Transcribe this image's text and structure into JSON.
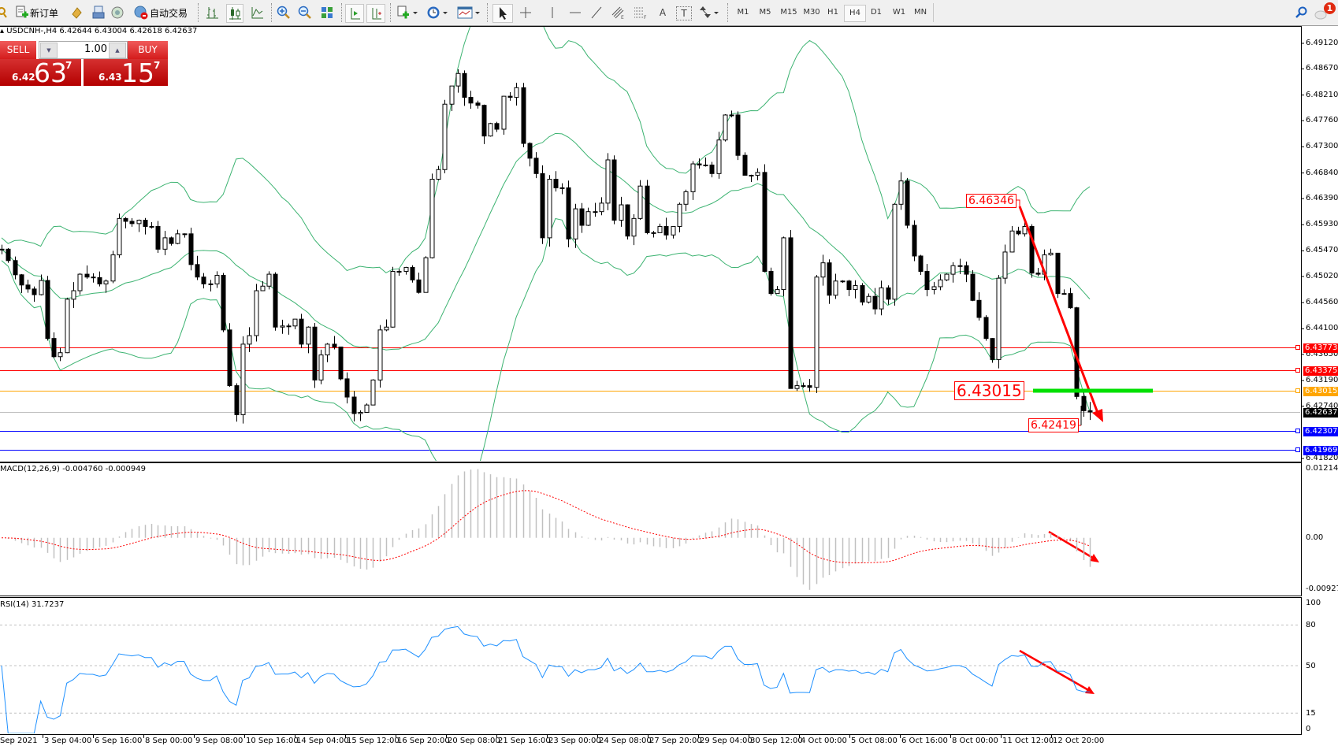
{
  "toolbar": {
    "new_order_label": "新订单",
    "auto_trading_label": "自动交易",
    "timeframes": [
      "M1",
      "M5",
      "M15",
      "M30",
      "H1",
      "H4",
      "D1",
      "W1",
      "MN"
    ],
    "active_timeframe": "H4",
    "text_tool_label": "A",
    "text_label_tool_label": "T",
    "notification_count": "1"
  },
  "chart": {
    "header": "USDCNH-,H4  6.42644 6.43004 6.42618 6.42637",
    "trade_panel": {
      "sell_label": "SELL",
      "buy_label": "BUY",
      "lot": "1.00",
      "bid": {
        "prefix": "6.42",
        "big": "63",
        "sup": "7"
      },
      "ask": {
        "prefix": "6.43",
        "big": "15",
        "sup": "7"
      }
    },
    "price_axis": [
      "6.49120",
      "6.48670",
      "6.48210",
      "6.47760",
      "6.47300",
      "6.46840",
      "6.46390",
      "6.45930",
      "6.45470",
      "6.45020",
      "6.44560",
      "6.44100",
      "6.43650",
      "6.43190",
      "6.42740",
      "6.41820"
    ],
    "levels": [
      {
        "value": "6.43773",
        "color": "#ff0000"
      },
      {
        "value": "6.43375",
        "color": "#ff0000"
      },
      {
        "value": "6.43015",
        "color": "#ffa500"
      },
      {
        "value": "6.42637",
        "color": "#000000",
        "line": "#c0c0c0"
      },
      {
        "value": "6.42307",
        "color": "#0000ff"
      },
      {
        "value": "6.41969",
        "color": "#0000ff"
      }
    ],
    "annotations": {
      "high_label": "6.46346",
      "level_label": "6.43015",
      "low_label": "6.42419"
    },
    "colors": {
      "bands": "#3cb371",
      "annotation": "#ff0000",
      "support": "#00e000"
    },
    "closes": [
      6.455,
      6.453,
      6.4505,
      6.4487,
      6.448,
      6.447,
      6.4495,
      6.4393,
      6.4361,
      6.4368,
      6.4462,
      6.4477,
      6.4506,
      6.4501,
      6.45,
      6.4489,
      6.4494,
      6.454,
      6.4604,
      6.4599,
      6.4595,
      6.4601,
      6.459,
      6.459,
      6.455,
      6.457,
      6.456,
      6.4577,
      6.4577,
      6.4523,
      6.4501,
      6.4489,
      6.4489,
      6.4504,
      6.4408,
      6.431,
      6.4259,
      6.4383,
      6.4398,
      6.4477,
      6.4485,
      6.4506,
      6.4413,
      6.4415,
      6.4415,
      6.4427,
      6.4383,
      6.4413,
      6.432,
      6.4364,
      6.4383,
      6.4378,
      6.4322,
      6.429,
      6.4261,
      6.4263,
      6.4276,
      6.432,
      6.4408,
      6.4413,
      6.4511,
      6.4511,
      6.4518,
      6.4496,
      6.4474,
      6.4535,
      6.4673,
      6.469,
      6.4805,
      6.4837,
      6.4859,
      6.4817,
      6.4807,
      6.4803,
      6.4749,
      6.4771,
      6.4761,
      6.4819,
      6.4817,
      6.4834,
      6.4736,
      6.471,
      6.4683,
      6.457,
      6.4673,
      6.4658,
      6.4658,
      6.4568,
      6.4621,
      6.4592,
      6.4616,
      6.4616,
      6.4631,
      6.4707,
      6.4601,
      6.4628,
      6.4573,
      6.4604,
      6.4661,
      6.4579,
      6.4579,
      6.459,
      6.4575,
      6.459,
      6.4629,
      6.4651,
      6.47,
      6.4698,
      6.4698,
      6.4683,
      6.4742,
      6.4786,
      6.4786,
      6.4715,
      6.468,
      6.468,
      6.4685,
      6.4511,
      6.4472,
      6.4479,
      6.457,
      6.4305,
      6.431,
      6.431,
      6.4307,
      6.4501,
      6.4526,
      6.4469,
      6.4494,
      6.4494,
      6.4479,
      6.4486,
      6.4457,
      6.4467,
      6.4445,
      6.4482,
      6.4462,
      6.4629,
      6.467,
      6.4592,
      6.4538,
      6.4511,
      6.4479,
      6.4484,
      6.4496,
      6.4506,
      6.4521,
      6.4521,
      6.4506,
      6.446,
      6.443,
      6.4393,
      6.4356,
      6.4499,
      6.4545,
      6.4582,
      6.4577,
      6.459,
      6.4508,
      6.4506,
      6.454,
      6.4543,
      6.4472,
      6.4472,
      6.4447,
      6.4291,
      6.4266,
      6.42637
    ]
  },
  "macd": {
    "header": "MACD(12,26,9) -0.004760 -0.000949",
    "axis": [
      "0.012148",
      "0.00",
      "-0.00927"
    ],
    "range": [
      -0.00927,
      0.012148
    ]
  },
  "rsi": {
    "header": "RSI(14) 31.7237",
    "axis": [
      "100",
      "80",
      "50",
      "15",
      "0"
    ]
  },
  "time_axis": [
    "Sep 2021",
    "3 Sep 04:00",
    "6 Sep 16:00",
    "8 Sep 00:00",
    "9 Sep 08:00",
    "10 Sep 16:00",
    "14 Sep 04:00",
    "15 Sep 12:00",
    "16 Sep 20:00",
    "20 Sep 08:00",
    "21 Sep 16:00",
    "23 Sep 00:00",
    "24 Sep 08:00",
    "27 Sep 20:00",
    "29 Sep 04:00",
    "30 Sep 12:00",
    "4 Oct 00:00",
    "5 Oct 08:00",
    "6 Oct 16:00",
    "8 Oct 00:00",
    "11 Oct 12:00",
    "12 Oct 20:00"
  ]
}
